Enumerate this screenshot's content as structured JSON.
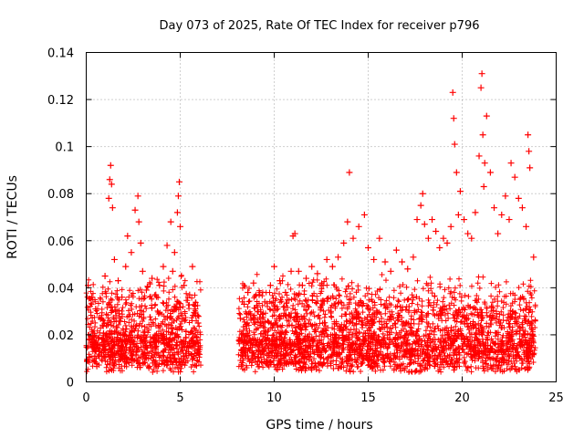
{
  "chart_data": {
    "type": "scatter",
    "title": "Day 073 of 2025, Rate Of TEC Index for receiver p796",
    "xlabel": "GPS time / hours",
    "ylabel": "ROTI / TECUs",
    "xlim": [
      0,
      25
    ],
    "ylim": [
      0,
      0.14
    ],
    "xticks": [
      0,
      5,
      10,
      15,
      20,
      25
    ],
    "xtick_labels": [
      "0",
      "5",
      "10",
      "15",
      "20",
      "25"
    ],
    "yticks": [
      0,
      0.02,
      0.04,
      0.06,
      0.08,
      0.1,
      0.12,
      0.14
    ],
    "ytick_labels": [
      "0",
      "0.02",
      "0.04",
      "0.06",
      "0.08",
      "0.1",
      "0.12",
      "0.14"
    ],
    "grid": true,
    "marker": "+",
    "color": "#ff0000",
    "coverage_hours": [
      [
        0.0,
        6.1
      ],
      [
        8.1,
        23.9
      ]
    ],
    "series": [
      {
        "name": "ROTI",
        "x": [
          0.1,
          0.3,
          0.5,
          0.8,
          1.0,
          1.2,
          1.25,
          1.3,
          1.35,
          1.4,
          1.5,
          1.7,
          1.9,
          2.1,
          2.2,
          2.4,
          2.6,
          2.75,
          2.8,
          2.9,
          3.0,
          3.2,
          3.5,
          3.7,
          3.9,
          4.1,
          4.3,
          4.5,
          4.6,
          4.7,
          4.85,
          4.9,
          4.95,
          5.0,
          5.2,
          5.5,
          5.65,
          5.8,
          5.95,
          8.2,
          8.4,
          8.6,
          8.9,
          9.2,
          9.5,
          9.8,
          10.0,
          10.3,
          10.6,
          10.9,
          11.0,
          11.1,
          11.3,
          11.5,
          11.7,
          12.0,
          12.3,
          12.6,
          12.8,
          13.1,
          13.4,
          13.7,
          13.9,
          14.0,
          14.2,
          14.5,
          14.8,
          15.0,
          15.3,
          15.6,
          15.9,
          16.2,
          16.5,
          16.8,
          17.1,
          17.4,
          17.6,
          17.8,
          17.9,
          18.0,
          18.2,
          18.4,
          18.6,
          18.8,
          19.0,
          19.2,
          19.4,
          19.5,
          19.55,
          19.6,
          19.7,
          19.8,
          19.9,
          20.1,
          20.3,
          20.5,
          20.7,
          20.9,
          21.0,
          21.05,
          21.1,
          21.15,
          21.2,
          21.3,
          21.5,
          21.7,
          21.9,
          22.1,
          22.3,
          22.5,
          22.6,
          22.8,
          23.0,
          23.2,
          23.4,
          23.5,
          23.55,
          23.6,
          23.8
        ],
        "y": [
          0.041,
          0.036,
          0.031,
          0.027,
          0.045,
          0.078,
          0.086,
          0.092,
          0.084,
          0.074,
          0.052,
          0.043,
          0.036,
          0.049,
          0.062,
          0.055,
          0.073,
          0.079,
          0.068,
          0.059,
          0.047,
          0.039,
          0.044,
          0.037,
          0.041,
          0.049,
          0.058,
          0.068,
          0.047,
          0.055,
          0.072,
          0.079,
          0.085,
          0.066,
          0.041,
          0.037,
          0.049,
          0.031,
          0.025,
          0.027,
          0.033,
          0.038,
          0.042,
          0.037,
          0.034,
          0.041,
          0.049,
          0.043,
          0.038,
          0.047,
          0.062,
          0.063,
          0.047,
          0.041,
          0.044,
          0.049,
          0.046,
          0.041,
          0.052,
          0.049,
          0.053,
          0.059,
          0.068,
          0.089,
          0.061,
          0.066,
          0.071,
          0.057,
          0.052,
          0.061,
          0.051,
          0.047,
          0.056,
          0.051,
          0.048,
          0.053,
          0.069,
          0.075,
          0.08,
          0.067,
          0.061,
          0.069,
          0.064,
          0.057,
          0.061,
          0.059,
          0.066,
          0.123,
          0.112,
          0.101,
          0.089,
          0.071,
          0.081,
          0.069,
          0.063,
          0.061,
          0.072,
          0.096,
          0.125,
          0.131,
          0.105,
          0.083,
          0.093,
          0.113,
          0.089,
          0.074,
          0.063,
          0.071,
          0.079,
          0.069,
          0.093,
          0.087,
          0.078,
          0.074,
          0.066,
          0.105,
          0.098,
          0.091,
          0.053
        ]
      }
    ]
  }
}
